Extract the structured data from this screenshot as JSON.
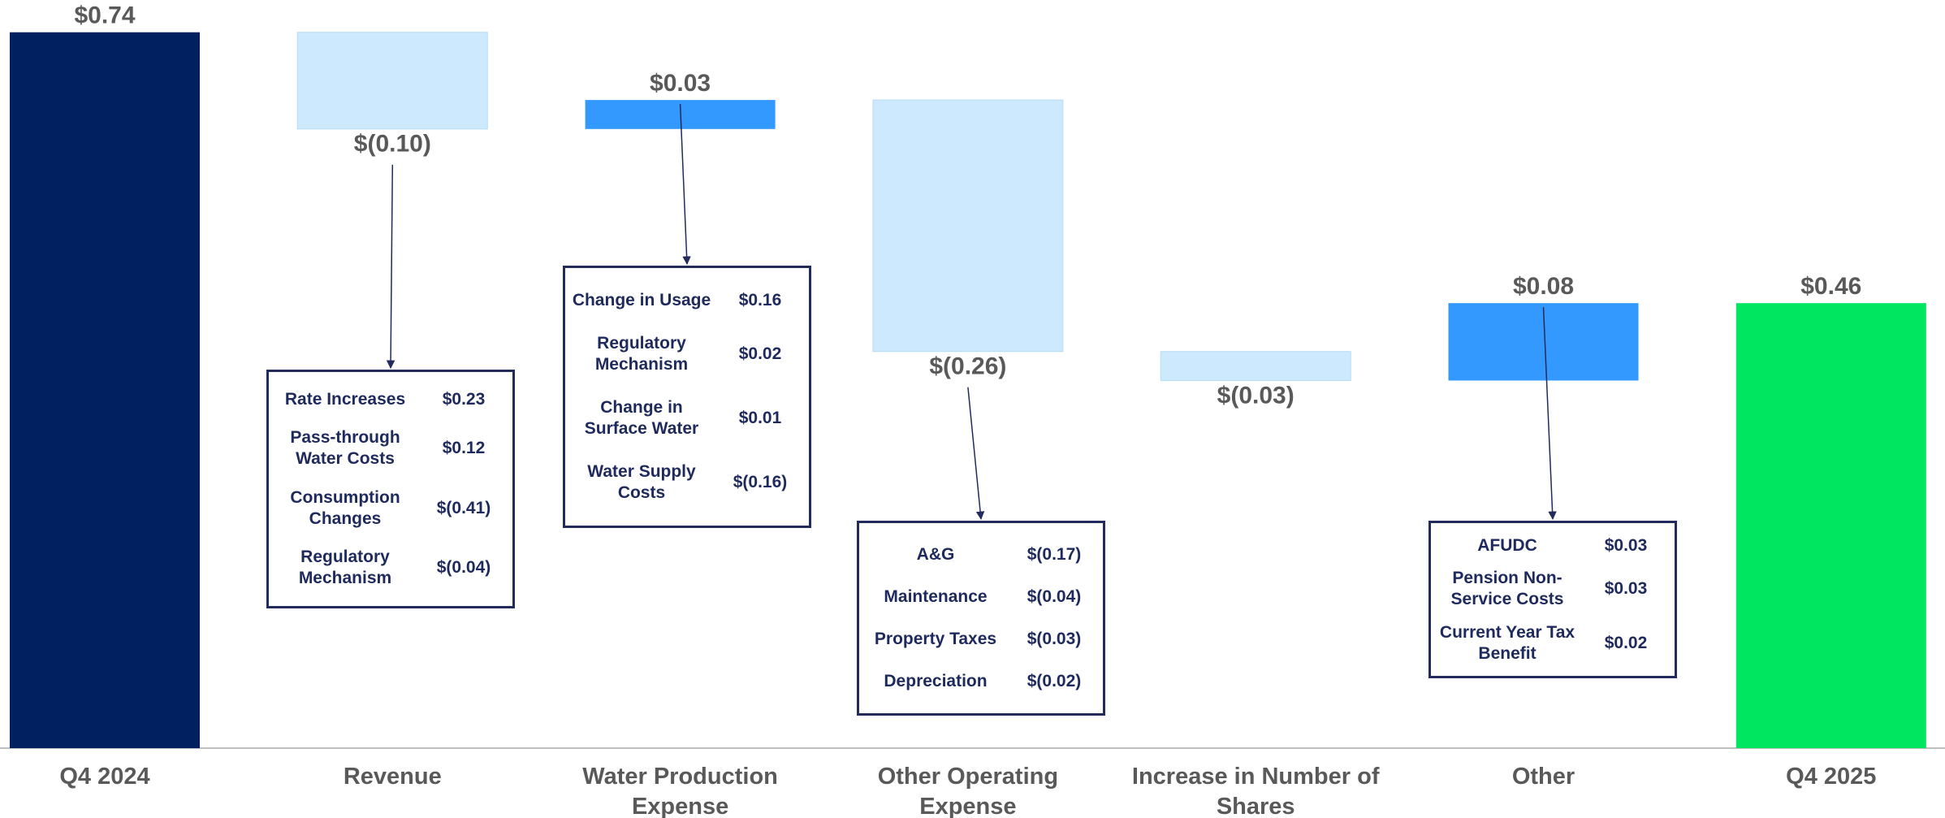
{
  "chart_data": {
    "type": "waterfall",
    "categories": [
      "Q4 2024",
      "Revenue",
      "Water Production Expense",
      "Other Operating Expense",
      "Increase in Number of Shares",
      "Other",
      "Q4 2025"
    ],
    "values": [
      0.74,
      -0.1,
      0.03,
      -0.26,
      -0.03,
      0.08,
      0.46
    ],
    "value_labels": [
      "$0.74",
      "$(0.10)",
      "$0.03",
      "$(0.26)",
      "$(0.03)",
      "$0.08",
      "$0.46"
    ],
    "totals": [
      true,
      false,
      false,
      false,
      false,
      false,
      true
    ],
    "colors": [
      "#002060",
      "#cce9fd",
      "#3399ff",
      "#cce9fd",
      "#cce9fd",
      "#3399ff",
      "#00e660"
    ],
    "ylim": [
      0,
      0.77
    ],
    "grid": false,
    "breakdowns": [
      {
        "items": [
          {
            "label": "Rate Increases",
            "value": "$0.23"
          },
          {
            "label": "Pass-through Water Costs",
            "value": "$0.12"
          },
          {
            "label": "Consumption Changes",
            "value": "$(0.41)"
          },
          {
            "label": "Regulatory Mechanism",
            "value": "$(0.04)"
          }
        ]
      },
      {
        "items": [
          {
            "label": "Change in Usage",
            "value": "$0.16"
          },
          {
            "label": "Regulatory Mechanism",
            "value": "$0.02"
          },
          {
            "label": "Change in Surface Water",
            "value": "$0.01"
          },
          {
            "label": "Water Supply Costs",
            "value": "$(0.16)"
          }
        ]
      },
      {
        "items": [
          {
            "label": "A&G",
            "value": "$(0.17)"
          },
          {
            "label": "Maintenance",
            "value": "$(0.04)"
          },
          {
            "label": "Property Taxes",
            "value": "$(0.03)"
          },
          {
            "label": "Depreciation",
            "value": "$(0.02)"
          }
        ]
      },
      {
        "items": [
          {
            "label": "AFUDC",
            "value": "$0.03"
          },
          {
            "label": "Pension Non-Service Costs",
            "value": "$0.03"
          },
          {
            "label": "Current Year Tax Benefit",
            "value": "$0.02"
          }
        ]
      }
    ]
  }
}
